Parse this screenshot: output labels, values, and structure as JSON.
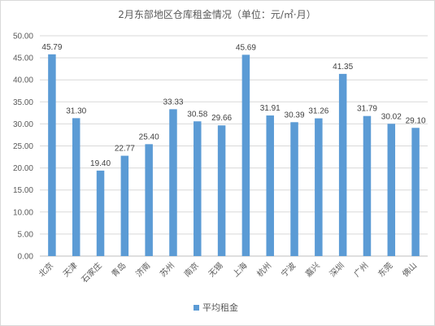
{
  "chart_data": {
    "type": "bar",
    "title": "2月东部地区仓库租金情况（单位：元/㎡·月）",
    "categories": [
      "北京",
      "天津",
      "石家庄",
      "青岛",
      "济南",
      "苏州",
      "南京",
      "无锡",
      "上海",
      "杭州",
      "宁波",
      "嘉兴",
      "深圳",
      "广州",
      "东莞",
      "佛山"
    ],
    "series": [
      {
        "name": "平均租金",
        "values": [
          45.79,
          31.3,
          19.4,
          22.77,
          25.4,
          33.33,
          30.58,
          29.66,
          45.69,
          31.91,
          30.39,
          31.26,
          41.35,
          31.79,
          30.02,
          29.1
        ],
        "labels": [
          "45.79",
          "31.30",
          "19.40",
          "22.77",
          "25.40",
          "33.33",
          "30.58",
          "29.66",
          "45.69",
          "31.91",
          "30.39",
          "31.26",
          "41.35",
          "31.79",
          "30.02",
          "29.10"
        ]
      }
    ],
    "yticks": [
      "0.00",
      "5.00",
      "10.00",
      "15.00",
      "20.00",
      "25.00",
      "30.00",
      "35.00",
      "40.00",
      "45.00",
      "50.00"
    ],
    "ylim": [
      0,
      50
    ],
    "grid": true,
    "legend_position": "bottom",
    "bar_color": "#5b9bd5"
  }
}
